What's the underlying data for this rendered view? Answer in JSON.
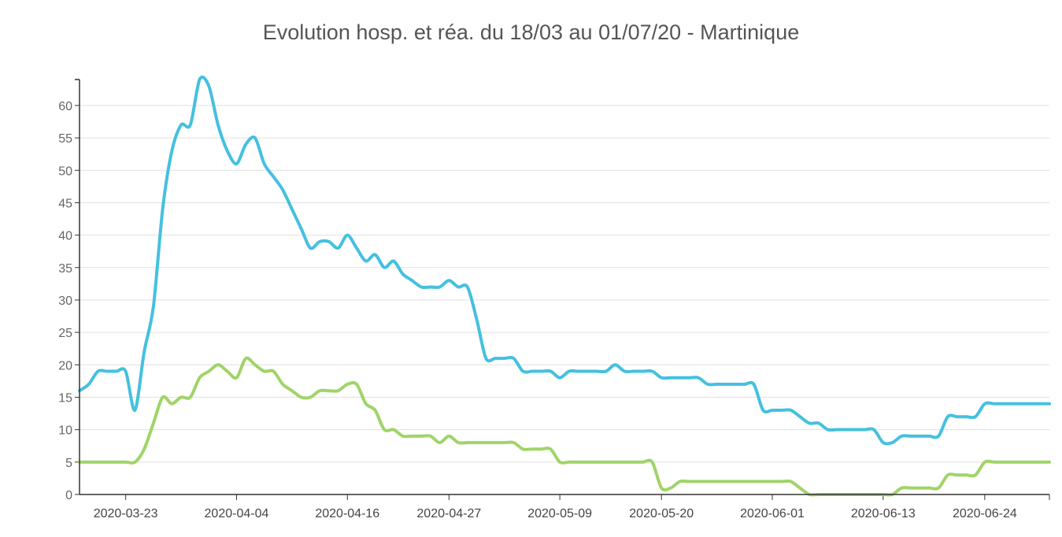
{
  "chart_data": {
    "type": "line",
    "title": "Evolution hosp. et réa. du 18/03 au 01/07/20 - Martinique",
    "xlabel": "",
    "ylabel": "",
    "x_start": "2020-03-18",
    "x_end": "2020-07-01",
    "x_ticks": [
      "2020-03-23",
      "2020-04-04",
      "2020-04-16",
      "2020-04-27",
      "2020-05-09",
      "2020-05-20",
      "2020-06-01",
      "2020-06-13",
      "2020-06-24"
    ],
    "y_ticks": [
      0,
      5,
      10,
      15,
      20,
      25,
      30,
      35,
      40,
      45,
      50,
      55,
      60
    ],
    "ylim": [
      0,
      64
    ],
    "grid": true,
    "colors": {
      "hosp": "#45c0e0",
      "rea": "#a0d468",
      "grid": "#e0e0e0",
      "axis": "#333333",
      "tick_text": "#666666"
    },
    "series": [
      {
        "key": "hosp",
        "x": [
          "2020-03-18",
          "2020-03-19",
          "2020-03-20",
          "2020-03-21",
          "2020-03-22",
          "2020-03-23",
          "2020-03-24",
          "2020-03-25",
          "2020-03-26",
          "2020-03-27",
          "2020-03-28",
          "2020-03-29",
          "2020-03-30",
          "2020-03-31",
          "2020-04-01",
          "2020-04-02",
          "2020-04-03",
          "2020-04-04",
          "2020-04-05",
          "2020-04-06",
          "2020-04-07",
          "2020-04-08",
          "2020-04-09",
          "2020-04-10",
          "2020-04-11",
          "2020-04-12",
          "2020-04-13",
          "2020-04-14",
          "2020-04-15",
          "2020-04-16",
          "2020-04-17",
          "2020-04-18",
          "2020-04-19",
          "2020-04-20",
          "2020-04-21",
          "2020-04-22",
          "2020-04-23",
          "2020-04-24",
          "2020-04-25",
          "2020-04-26",
          "2020-04-27",
          "2020-04-28",
          "2020-04-29",
          "2020-04-30",
          "2020-05-01",
          "2020-05-02",
          "2020-05-03",
          "2020-05-04",
          "2020-05-05",
          "2020-05-06",
          "2020-05-07",
          "2020-05-08",
          "2020-05-09",
          "2020-05-10",
          "2020-05-11",
          "2020-05-12",
          "2020-05-13",
          "2020-05-14",
          "2020-05-15",
          "2020-05-16",
          "2020-05-17",
          "2020-05-18",
          "2020-05-19",
          "2020-05-20",
          "2020-05-21",
          "2020-05-22",
          "2020-05-23",
          "2020-05-24",
          "2020-05-25",
          "2020-05-26",
          "2020-05-27",
          "2020-05-28",
          "2020-05-29",
          "2020-05-30",
          "2020-05-31",
          "2020-06-01",
          "2020-06-02",
          "2020-06-03",
          "2020-06-04",
          "2020-06-05",
          "2020-06-06",
          "2020-06-07",
          "2020-06-08",
          "2020-06-09",
          "2020-06-10",
          "2020-06-11",
          "2020-06-12",
          "2020-06-13",
          "2020-06-14",
          "2020-06-15",
          "2020-06-16",
          "2020-06-17",
          "2020-06-18",
          "2020-06-19",
          "2020-06-20",
          "2020-06-21",
          "2020-06-22",
          "2020-06-23",
          "2020-06-24",
          "2020-06-25",
          "2020-06-26",
          "2020-06-27",
          "2020-06-28",
          "2020-06-29",
          "2020-06-30",
          "2020-07-01"
        ],
        "values": [
          16,
          17,
          19,
          19,
          19,
          19,
          13,
          22,
          29,
          44,
          53,
          57,
          57,
          64,
          63,
          57,
          53,
          51,
          54,
          55,
          51,
          49,
          47,
          44,
          41,
          38,
          39,
          39,
          38,
          40,
          38,
          36,
          37,
          35,
          36,
          34,
          33,
          32,
          32,
          32,
          33,
          32,
          32,
          27,
          21,
          21,
          21,
          21,
          19,
          19,
          19,
          19,
          18,
          19,
          19,
          19,
          19,
          19,
          20,
          19,
          19,
          19,
          19,
          18,
          18,
          18,
          18,
          18,
          17,
          17,
          17,
          17,
          17,
          17,
          13,
          13,
          13,
          13,
          12,
          11,
          11,
          10,
          10,
          10,
          10,
          10,
          10,
          8,
          8,
          9,
          9,
          9,
          9,
          9,
          12,
          12,
          12,
          12,
          14,
          14,
          14,
          14,
          14,
          14,
          14,
          14
        ]
      },
      {
        "key": "rea",
        "x": [
          "2020-03-18",
          "2020-03-19",
          "2020-03-20",
          "2020-03-21",
          "2020-03-22",
          "2020-03-23",
          "2020-03-24",
          "2020-03-25",
          "2020-03-26",
          "2020-03-27",
          "2020-03-28",
          "2020-03-29",
          "2020-03-30",
          "2020-03-31",
          "2020-04-01",
          "2020-04-02",
          "2020-04-03",
          "2020-04-04",
          "2020-04-05",
          "2020-04-06",
          "2020-04-07",
          "2020-04-08",
          "2020-04-09",
          "2020-04-10",
          "2020-04-11",
          "2020-04-12",
          "2020-04-13",
          "2020-04-14",
          "2020-04-15",
          "2020-04-16",
          "2020-04-17",
          "2020-04-18",
          "2020-04-19",
          "2020-04-20",
          "2020-04-21",
          "2020-04-22",
          "2020-04-23",
          "2020-04-24",
          "2020-04-25",
          "2020-04-26",
          "2020-04-27",
          "2020-04-28",
          "2020-04-29",
          "2020-04-30",
          "2020-05-01",
          "2020-05-02",
          "2020-05-03",
          "2020-05-04",
          "2020-05-05",
          "2020-05-06",
          "2020-05-07",
          "2020-05-08",
          "2020-05-09",
          "2020-05-10",
          "2020-05-11",
          "2020-05-12",
          "2020-05-13",
          "2020-05-14",
          "2020-05-15",
          "2020-05-16",
          "2020-05-17",
          "2020-05-18",
          "2020-05-19",
          "2020-05-20",
          "2020-05-21",
          "2020-05-22",
          "2020-05-23",
          "2020-05-24",
          "2020-05-25",
          "2020-05-26",
          "2020-05-27",
          "2020-05-28",
          "2020-05-29",
          "2020-05-30",
          "2020-05-31",
          "2020-06-01",
          "2020-06-02",
          "2020-06-03",
          "2020-06-04",
          "2020-06-05",
          "2020-06-06",
          "2020-06-07",
          "2020-06-08",
          "2020-06-09",
          "2020-06-10",
          "2020-06-11",
          "2020-06-12",
          "2020-06-13",
          "2020-06-14",
          "2020-06-15",
          "2020-06-16",
          "2020-06-17",
          "2020-06-18",
          "2020-06-19",
          "2020-06-20",
          "2020-06-21",
          "2020-06-22",
          "2020-06-23",
          "2020-06-24",
          "2020-06-25",
          "2020-06-26",
          "2020-06-27",
          "2020-06-28",
          "2020-06-29",
          "2020-06-30",
          "2020-07-01"
        ],
        "values": [
          5,
          5,
          5,
          5,
          5,
          5,
          5,
          7,
          11,
          15,
          14,
          15,
          15,
          18,
          19,
          20,
          19,
          18,
          21,
          20,
          19,
          19,
          17,
          16,
          15,
          15,
          16,
          16,
          16,
          17,
          17,
          14,
          13,
          10,
          10,
          9,
          9,
          9,
          9,
          8,
          9,
          8,
          8,
          8,
          8,
          8,
          8,
          8,
          7,
          7,
          7,
          7,
          5,
          5,
          5,
          5,
          5,
          5,
          5,
          5,
          5,
          5,
          5,
          1,
          1,
          2,
          2,
          2,
          2,
          2,
          2,
          2,
          2,
          2,
          2,
          2,
          2,
          2,
          1,
          0,
          0,
          0,
          0,
          0,
          0,
          0,
          0,
          0,
          0,
          1,
          1,
          1,
          1,
          1,
          3,
          3,
          3,
          3,
          5,
          5,
          5,
          5,
          5,
          5,
          5,
          5
        ]
      }
    ]
  }
}
